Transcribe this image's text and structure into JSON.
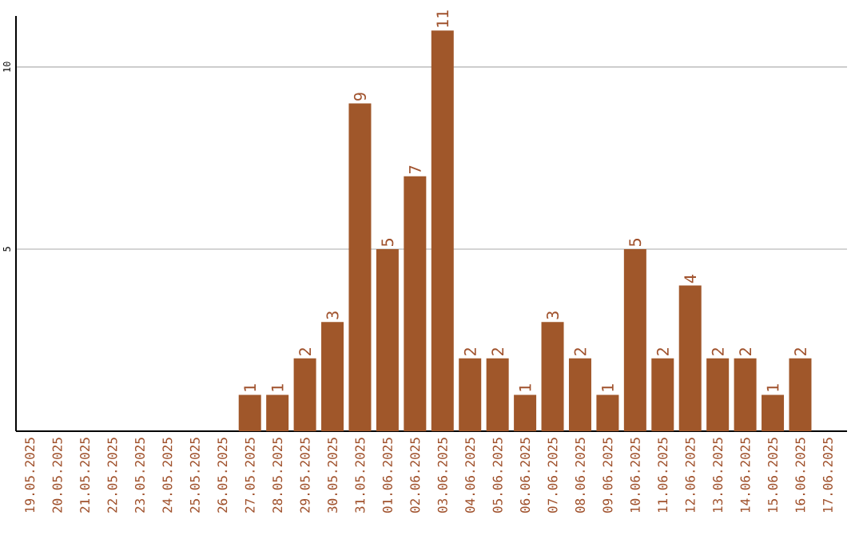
{
  "chart_data": {
    "type": "bar",
    "categories": [
      "19.05.2025",
      "20.05.2025",
      "21.05.2025",
      "22.05.2025",
      "23.05.2025",
      "24.05.2025",
      "25.05.2025",
      "26.05.2025",
      "27.05.2025",
      "28.05.2025",
      "29.05.2025",
      "30.05.2025",
      "31.05.2025",
      "01.06.2025",
      "02.06.2025",
      "03.06.2025",
      "04.06.2025",
      "05.06.2025",
      "06.06.2025",
      "07.06.2025",
      "08.06.2025",
      "09.06.2025",
      "10.06.2025",
      "11.06.2025",
      "12.06.2025",
      "13.06.2025",
      "14.06.2025",
      "15.06.2025",
      "16.06.2025",
      "17.06.2025"
    ],
    "values": [
      0,
      0,
      0,
      0,
      0,
      0,
      0,
      0,
      1,
      1,
      2,
      3,
      9,
      5,
      7,
      11,
      2,
      2,
      1,
      3,
      2,
      1,
      5,
      2,
      4,
      2,
      2,
      1,
      2,
      0
    ],
    "value_labels": [
      null,
      null,
      null,
      null,
      null,
      null,
      null,
      null,
      "1",
      "1",
      "2",
      "3",
      "9",
      "5",
      "7",
      "11",
      "2",
      "2",
      "1",
      "3",
      "2",
      "1",
      "5",
      "2",
      "4",
      "2",
      "2",
      "1",
      "2",
      null
    ],
    "color": "#a0572a",
    "ylim": [
      0,
      11.4
    ],
    "yticks": [
      5,
      10
    ],
    "grid": "y"
  }
}
